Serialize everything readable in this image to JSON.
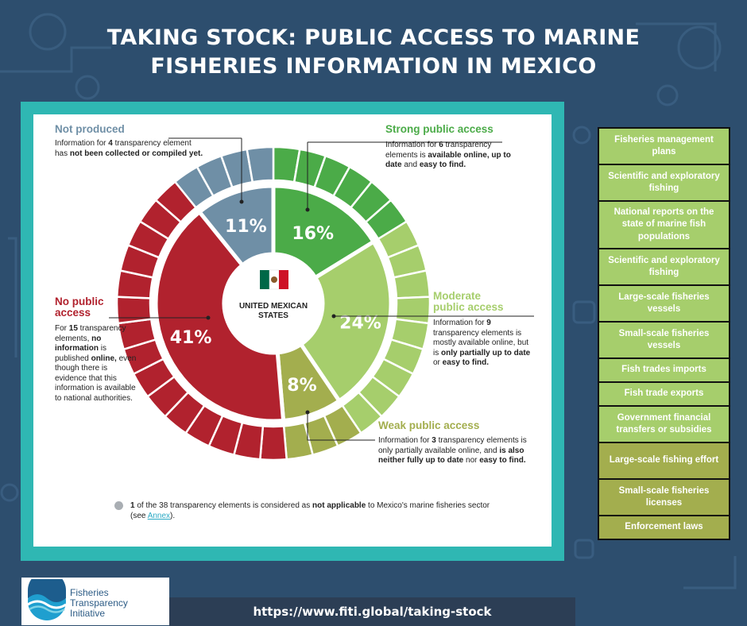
{
  "title": {
    "line1": "TAKING STOCK: PUBLIC ACCESS TO MARINE",
    "line2": "FISHERIES INFORMATION IN MEXICO"
  },
  "colors": {
    "background": "#2d4e6e",
    "frame": "#2fb7b3",
    "strong": "#4bab48",
    "moderate": "#a6ce6c",
    "weak": "#a3ae4e",
    "no_access": "#b1222e",
    "not_produced": "#6f8fa6"
  },
  "chart_data": {
    "type": "pie",
    "center_label": "UNITED MEXICAN STATES",
    "center_icon": "mexico-flag-icon",
    "categories": [
      "Strong public access",
      "Moderate public access",
      "Weak public access",
      "No public access",
      "Not produced"
    ],
    "counts": [
      6,
      9,
      3,
      15,
      4
    ],
    "values": [
      16,
      24,
      8,
      41,
      11
    ],
    "value_labels": [
      "16%",
      "24%",
      "8%",
      "41%",
      "11%"
    ],
    "total_elements": 38,
    "not_applicable": 1
  },
  "labels": {
    "strong": {
      "head": "Strong public access",
      "d1": "Information for ",
      "d2": "6",
      "d3": " transparency elements is ",
      "d4": "available online, up to date",
      "d5": " and ",
      "d6": "easy to find."
    },
    "moderate": {
      "head1": "Moderate",
      "head2": "public access",
      "d1": "Information for ",
      "d2": "9",
      "d3": " transparency elements is mostly available online, but is ",
      "d4": "only partially up to date",
      "d5": " or ",
      "d6": "easy to find."
    },
    "weak": {
      "head": "Weak public access",
      "d1": "Information for ",
      "d2": "3",
      "d3": " transparency elements is only partially available online, and ",
      "d4": "is also neither fully up to date",
      "d5": " nor ",
      "d6": "easy to find."
    },
    "no_access": {
      "head1": "No public",
      "head2": "access",
      "d1": "For ",
      "d2": "15",
      "d3": " transparency elements, ",
      "d4": "no information",
      "d5": " is published ",
      "d6": "online,",
      "d7": " even though there is evidence that this information is available to national authorities."
    },
    "not_produced": {
      "head": "Not produced",
      "d1": "Information for ",
      "d2": "4",
      "d3": " transparency element has ",
      "d4": "not been collected or compiled yet."
    }
  },
  "footnote": {
    "n": "1",
    "t1": " of the 38 transparency elements is considered as ",
    "t2": "not applicable",
    "t3": " to Mexico's marine fisheries sector (see ",
    "link": "Annex",
    "t4": ")."
  },
  "sidebar": {
    "items": [
      {
        "label": "Fisheries management plans",
        "color": "#a6ce6c"
      },
      {
        "label": "Scientific and exploratory fishing",
        "color": "#a6ce6c"
      },
      {
        "label": "National reports on the state of marine fish populations",
        "color": "#a6ce6c"
      },
      {
        "label": "Scientific and exploratory fishing",
        "color": "#a6ce6c"
      },
      {
        "label": "Large-scale fisheries vessels",
        "color": "#a6ce6c"
      },
      {
        "label": "Small-scale fisheries vessels",
        "color": "#a6ce6c"
      },
      {
        "label": "Fish trades imports",
        "color": "#a6ce6c"
      },
      {
        "label": "Fish trade exports",
        "color": "#a6ce6c"
      },
      {
        "label": "Government financial transfers or subsidies",
        "color": "#a6ce6c"
      },
      {
        "label": "Large-scale fishing effort",
        "color": "#a3ae4e"
      },
      {
        "label": "Small-scale fisheries licenses",
        "color": "#a3ae4e"
      },
      {
        "label": "Enforcement laws",
        "color": "#a3ae4e"
      }
    ]
  },
  "logo": {
    "line1": "Fisheries",
    "line2": "Transparency",
    "line3": "Initiative"
  },
  "url": "https://www.fiti.global/taking-stock"
}
